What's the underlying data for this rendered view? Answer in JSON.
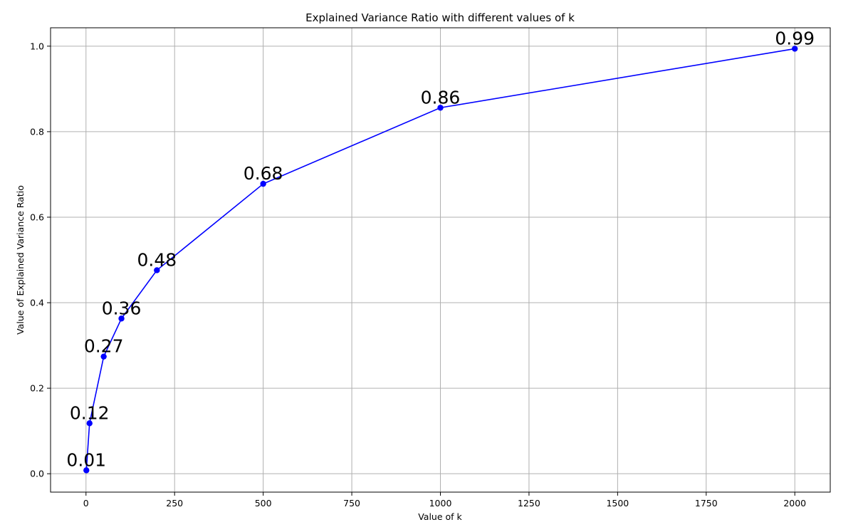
{
  "chart_data": {
    "type": "line",
    "title": "Explained Variance Ratio with different values of k",
    "xlabel": "Value of k",
    "ylabel": "Value of Explained Variance Ratio",
    "xlim": [
      -100,
      2100
    ],
    "ylim": [
      -0.043,
      1.043
    ],
    "xticks": [
      0,
      250,
      500,
      750,
      1000,
      1250,
      1500,
      1750,
      2000
    ],
    "xtick_labels": [
      "0",
      "250",
      "500",
      "750",
      "1000",
      "1250",
      "1500",
      "1750",
      "2000"
    ],
    "yticks": [
      0.0,
      0.2,
      0.4,
      0.6,
      0.8,
      1.0
    ],
    "ytick_labels": [
      "0.0",
      "0.2",
      "0.4",
      "0.6",
      "0.8",
      "1.0"
    ],
    "grid": true,
    "color": "#0000ff",
    "marker": "circle",
    "series": [
      {
        "x": [
          1,
          10,
          50,
          100,
          200,
          500,
          1000,
          2000
        ],
        "y": [
          0.008,
          0.118,
          0.274,
          0.363,
          0.476,
          0.678,
          0.856,
          0.994
        ],
        "labels": [
          "0.01",
          "0.12",
          "0.27",
          "0.36",
          "0.48",
          "0.68",
          "0.86",
          "0.99"
        ]
      }
    ]
  }
}
